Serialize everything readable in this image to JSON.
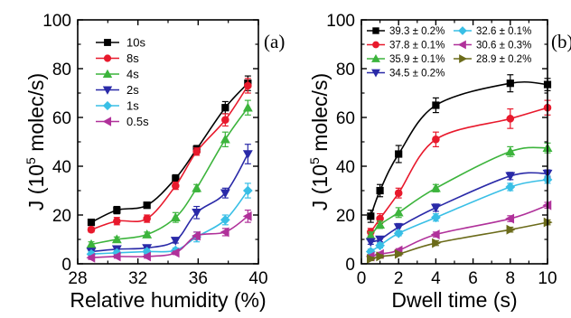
{
  "chart_data": [
    {
      "type": "line",
      "panel_label": "(a)",
      "xlabel": "Relative humidity (%)",
      "ylabel_prefix": "J (10",
      "ylabel_sup": "5",
      "ylabel_suffix": " molec/s)",
      "xlim": [
        28,
        40
      ],
      "ylim": [
        0,
        100
      ],
      "xticks": [
        28,
        32,
        36,
        40
      ],
      "yticks": [
        0,
        20,
        40,
        60,
        80,
        100
      ],
      "x": [
        28.9,
        30.6,
        32.6,
        34.5,
        35.9,
        37.8,
        39.3
      ],
      "legend_position": "top-left",
      "series": [
        {
          "name": "10s",
          "color": "#000000",
          "marker": "square",
          "values": [
            17,
            22,
            24,
            35,
            47,
            64,
            74
          ],
          "errors": [
            1.2,
            1.5,
            1.2,
            1.5,
            1.5,
            2.5,
            3
          ]
        },
        {
          "name": "8s",
          "color": "#e8192c",
          "marker": "circle",
          "values": [
            14,
            17.5,
            18.5,
            32,
            46,
            59,
            73
          ],
          "errors": [
            1,
            1.5,
            1.5,
            1.5,
            1.5,
            2.5,
            3
          ]
        },
        {
          "name": "4s",
          "color": "#3cb43c",
          "marker": "triangle-up",
          "values": [
            8,
            10,
            12,
            19,
            31,
            51,
            64
          ],
          "errors": [
            1,
            1,
            1,
            2,
            1.5,
            3,
            3
          ]
        },
        {
          "name": "2s",
          "color": "#2a2aa8",
          "marker": "triangle-down",
          "values": [
            5,
            6,
            6.5,
            9.5,
            21,
            29,
            45
          ],
          "errors": [
            1,
            1,
            1,
            1,
            2.5,
            2,
            4
          ]
        },
        {
          "name": "1s",
          "color": "#39bfe6",
          "marker": "diamond",
          "values": [
            4,
            4.5,
            5,
            5.5,
            11,
            18,
            30
          ],
          "errors": [
            1,
            1,
            1,
            1,
            2,
            2,
            3
          ]
        },
        {
          "name": "0.5s",
          "color": "#b0319a",
          "marker": "triangle-left",
          "values": [
            2.5,
            3,
            3,
            4.5,
            11.5,
            13,
            19.5
          ],
          "errors": [
            0.7,
            0.7,
            0.7,
            0.7,
            1.5,
            1.5,
            2.5
          ]
        }
      ]
    },
    {
      "type": "line",
      "panel_label": "(b)",
      "xlabel": "Dwell time (s)",
      "ylabel_prefix": "J (10",
      "ylabel_sup": "5",
      "ylabel_suffix": " molec/s)",
      "xlim": [
        0,
        10
      ],
      "ylim": [
        0,
        100
      ],
      "xticks": [
        0,
        2,
        4,
        6,
        8,
        10
      ],
      "yticks": [
        0,
        20,
        40,
        60,
        80,
        100
      ],
      "x": [
        0.5,
        1,
        2,
        4,
        8,
        10
      ],
      "legend_position": "top",
      "series": [
        {
          "name": "39.3 ± 0.2%",
          "color": "#000000",
          "marker": "square",
          "values": [
            19.5,
            30,
            45,
            65,
            74,
            73.5
          ],
          "errors": [
            2.5,
            2.5,
            3.5,
            3,
            3.5,
            2.5
          ]
        },
        {
          "name": "37.8 ± 0.1%",
          "color": "#e8192c",
          "marker": "circle",
          "values": [
            13,
            18.5,
            29,
            51,
            59.5,
            64
          ],
          "errors": [
            1.5,
            2,
            2,
            3,
            4,
            3
          ]
        },
        {
          "name": "35.9 ± 0.1%",
          "color": "#3cb43c",
          "marker": "triangle-up",
          "values": [
            11.5,
            16,
            21,
            31,
            46,
            47.5
          ],
          "errors": [
            1.5,
            1.5,
            2,
            1.5,
            2,
            2
          ]
        },
        {
          "name": "34.5 ± 0.2%",
          "color": "#2a2aa8",
          "marker": "triangle-down",
          "values": [
            9,
            10,
            15,
            23,
            36,
            37
          ],
          "errors": [
            1,
            1,
            1.5,
            1.5,
            1.5,
            1.5
          ]
        },
        {
          "name": "32.6 ± 0.1%",
          "color": "#39bfe6",
          "marker": "diamond",
          "values": [
            5,
            7.5,
            12.5,
            19,
            31.5,
            34.5
          ],
          "errors": [
            1,
            1,
            1,
            1.5,
            1.5,
            1.5
          ]
        },
        {
          "name": "30.6 ± 0.3%",
          "color": "#b0319a",
          "marker": "triangle-left",
          "values": [
            3,
            4,
            5.5,
            12,
            18.5,
            24
          ],
          "errors": [
            0.7,
            0.7,
            0.7,
            1,
            1.2,
            1.2
          ]
        },
        {
          "name": "28.9 ± 0.2%",
          "color": "#6b6b1a",
          "marker": "triangle-right",
          "values": [
            2,
            3,
            4,
            8.5,
            14,
            17
          ],
          "errors": [
            0.7,
            0.7,
            0.7,
            1,
            1,
            1
          ]
        }
      ]
    }
  ]
}
